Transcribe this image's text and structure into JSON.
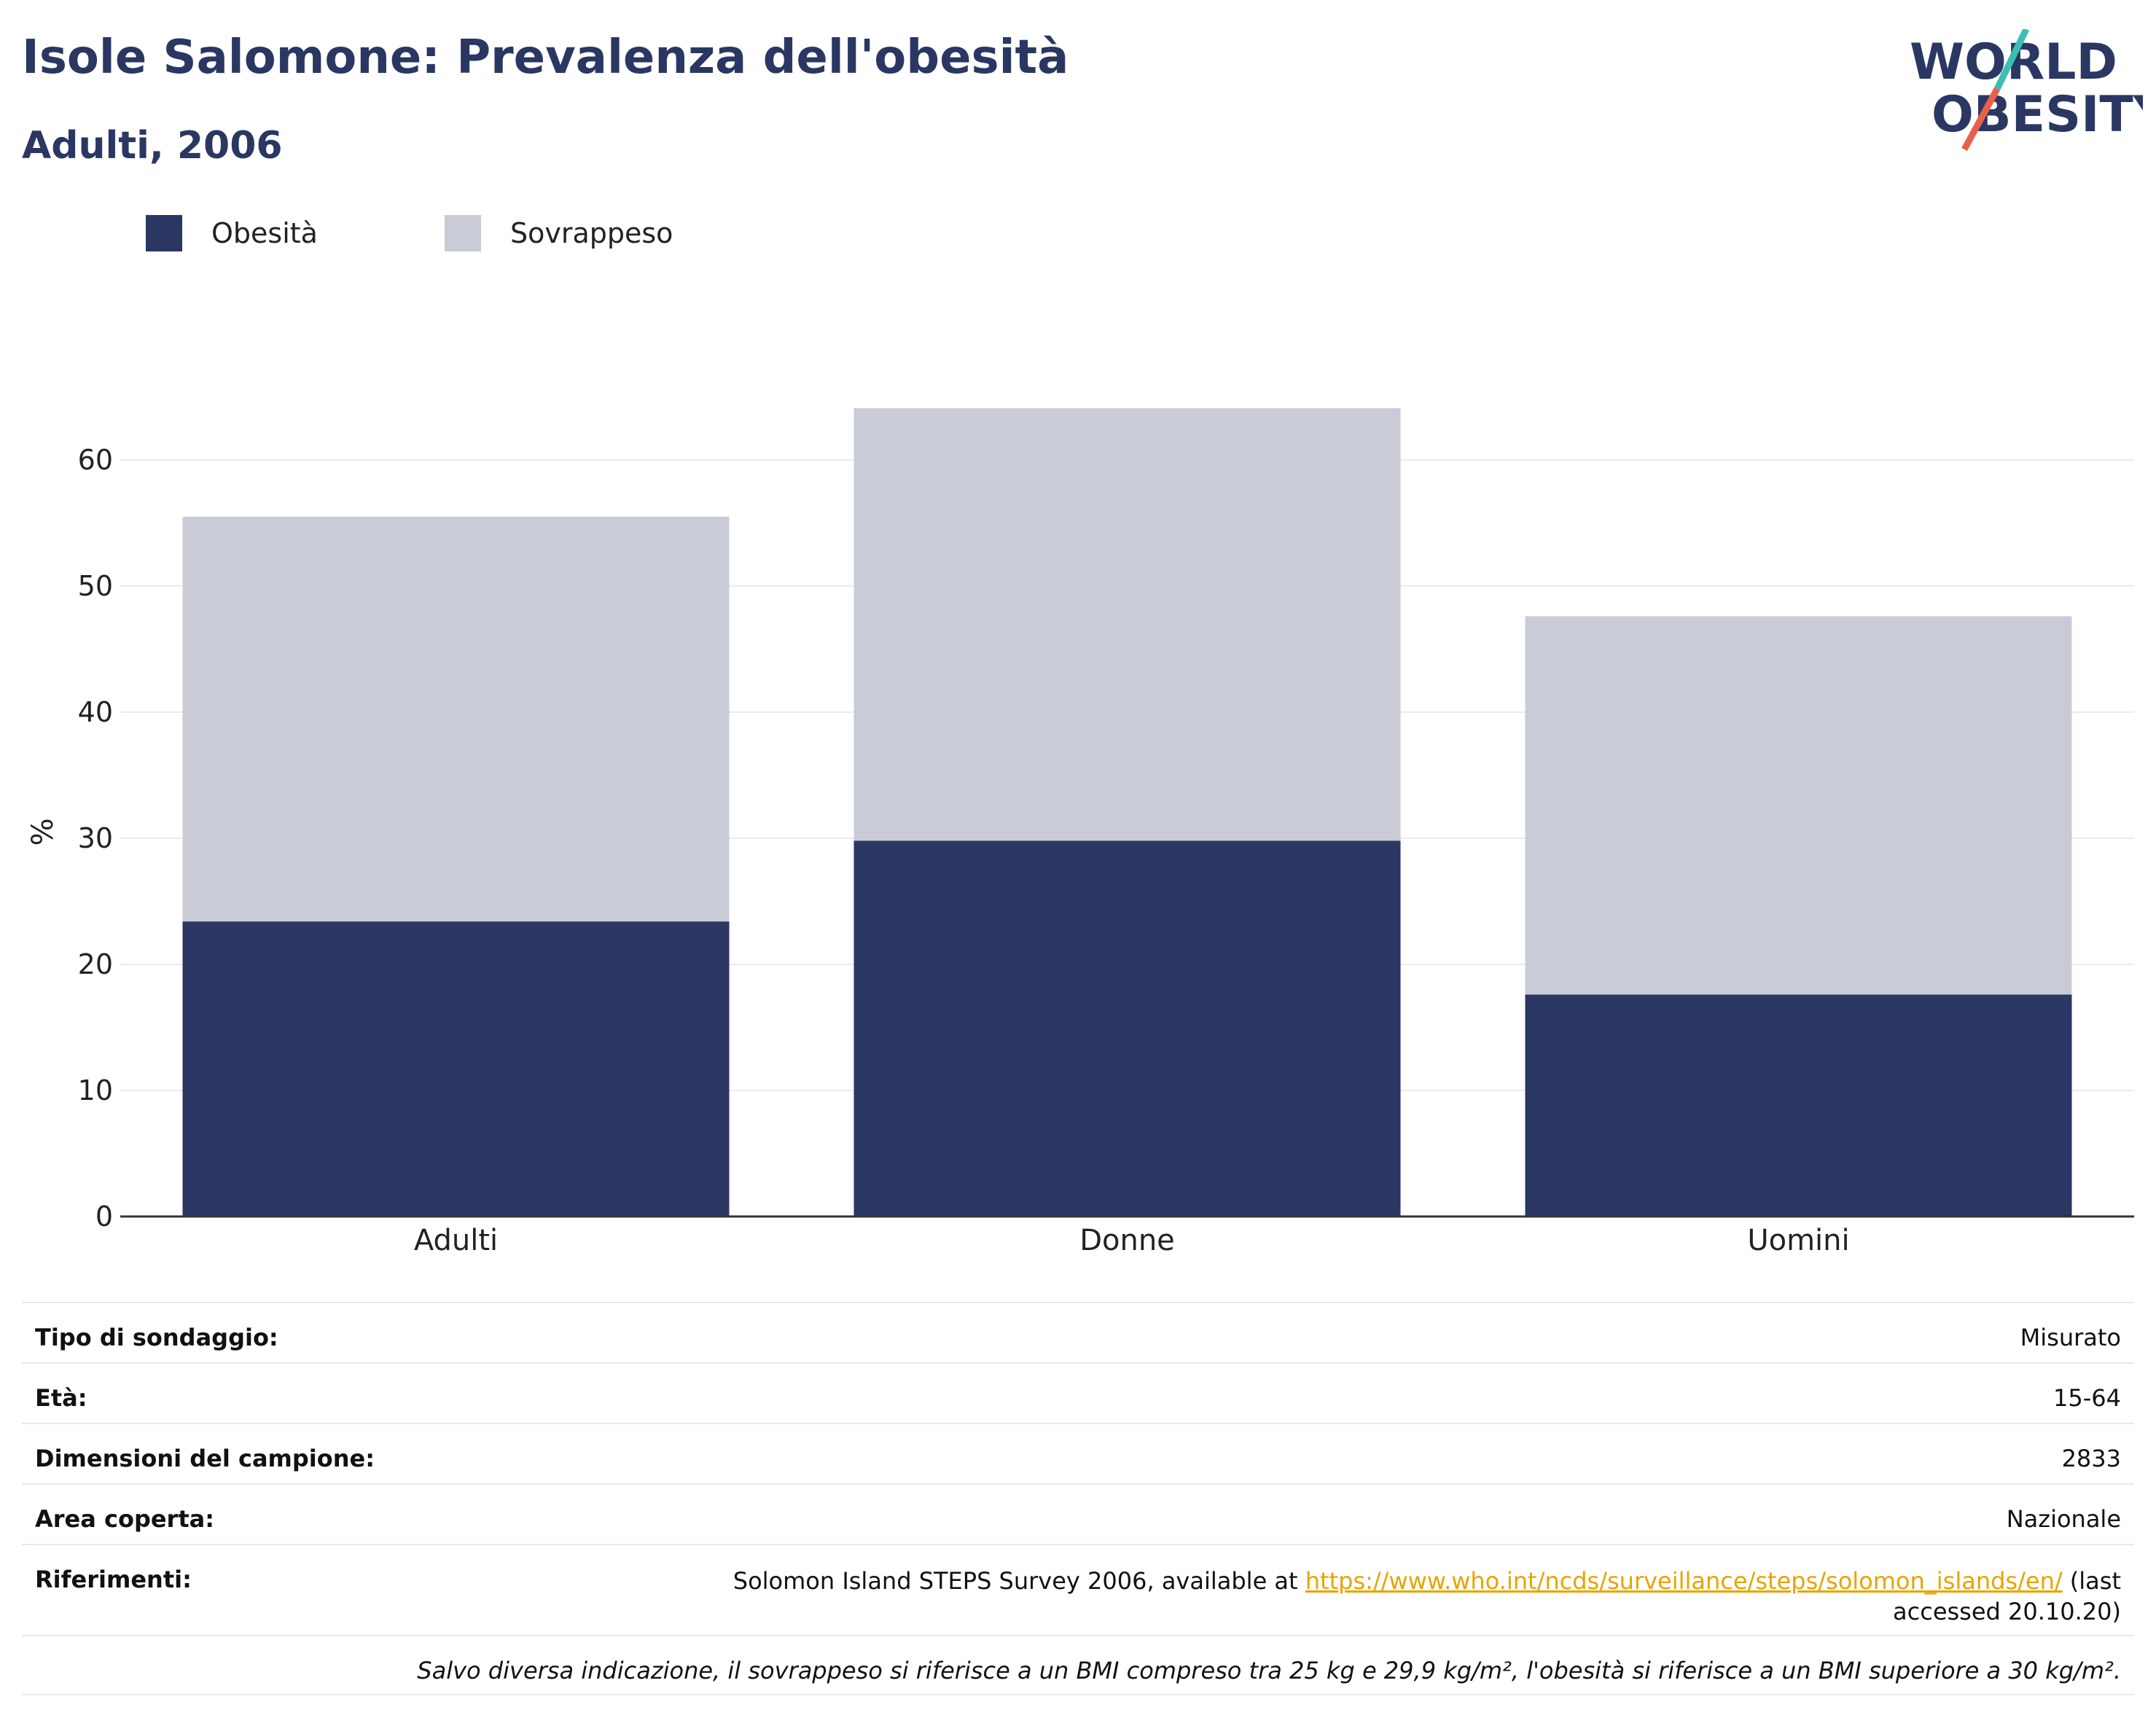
{
  "header": {
    "title": "Isole Salomone: Prevalenza dell'obesità",
    "subtitle": "Adulti, 2006"
  },
  "logo": {
    "line1": "WORLD",
    "line2": "OBESITY"
  },
  "colors": {
    "obesity": "#2a3763",
    "overweight": "#c9ccd7",
    "title": "#2a3763",
    "link": "#e8a400",
    "logo_teal": "#3bbfb3",
    "logo_red": "#e8604c"
  },
  "chart_data": {
    "type": "bar",
    "stacked": true,
    "title": "",
    "xlabel": "",
    "ylabel": "%",
    "categories": [
      "Adulti",
      "Donne",
      "Uomini"
    ],
    "series": [
      {
        "name": "Obesità",
        "values": [
          23.4,
          29.8,
          17.6
        ]
      },
      {
        "name": "Sovrappeso",
        "values": [
          32.1,
          34.3,
          30.0
        ]
      }
    ],
    "ylim": [
      0,
      66
    ],
    "yticks": [
      0,
      10,
      20,
      30,
      40,
      50,
      60
    ],
    "legend_position": "top-left",
    "grid": true
  },
  "info": {
    "rows": [
      {
        "label": "Tipo di sondaggio:",
        "value": "Misurato"
      },
      {
        "label": "Età:",
        "value": "15-64"
      },
      {
        "label": "Dimensioni del campione:",
        "value": "2833"
      },
      {
        "label": "Area coperta:",
        "value": "Nazionale"
      }
    ],
    "references_label": "Riferimenti:",
    "references_prefix": "Solomon Island STEPS Survey 2006, available at ",
    "references_link": "https://www.who.int/ncds/surveillance/steps/solomon_islands/en/",
    "references_suffix": " (last accessed 20.10.20)",
    "note": "Salvo diversa indicazione, il sovrappeso si riferisce a un BMI compreso tra 25 kg e 29,9 kg/m², l'obesità si riferisce a un BMI superiore a 30 kg/m²."
  }
}
